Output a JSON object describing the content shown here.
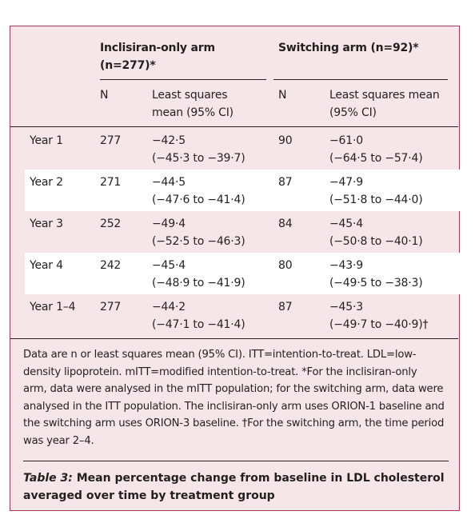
{
  "table": {
    "groups": [
      {
        "line1": "Inclisiran-only arm",
        "line2": "(n=277)*"
      },
      {
        "line1": "Switching arm (n=92)*",
        "line2": ""
      }
    ],
    "subheaders": {
      "n1": "N",
      "lsm1_line1": "Least squares",
      "lsm1_line2": "mean (95% CI)",
      "n2": "N",
      "lsm2_line1": "Least squares mean",
      "lsm2_line2": "(95% CI)"
    },
    "rows": [
      {
        "label": "Year 1",
        "n1": "277",
        "m1": "−42·5",
        "ci1": "(−45·3 to −39·7)",
        "n2": "90",
        "m2": "−61·0",
        "ci2": "(−64·5 to −57·4)"
      },
      {
        "label": "Year 2",
        "n1": "271",
        "m1": "−44·5",
        "ci1": "(−47·6 to −41·4)",
        "n2": "87",
        "m2": "−47·9",
        "ci2": "(−51·8 to −44·0)"
      },
      {
        "label": "Year 3",
        "n1": "252",
        "m1": "−49·4",
        "ci1": "(−52·5 to −46·3)",
        "n2": "84",
        "m2": "−45·4",
        "ci2": "(−50·8 to −40·1)"
      },
      {
        "label": "Year 4",
        "n1": "242",
        "m1": "−45·4",
        "ci1": "(−48·9 to −41·9)",
        "n2": "80",
        "m2": "−43·9",
        "ci2": "(−49·5 to −38·3)"
      },
      {
        "label": "Year 1–4",
        "n1": "277",
        "m1": "−44·2",
        "ci1": "(−47·1 to −41·4)",
        "n2": "87",
        "m2": "−45·3",
        "ci2": "(−49·7 to −40·9)†"
      }
    ]
  },
  "footnote": [
    "Data are n or least squares mean (95% CI). ITT=intention-to-treat. LDL=low-",
    "density lipoprotein. mITT=modified intention-to-treat. *For the inclisiran-only",
    "arm, data were analysed in the mITT population; for the switching arm, data were",
    "analysed in the ITT population. The inclisiran-only arm uses ORION-1 baseline and",
    "the switching arm uses ORION-3 baseline. †For the switching arm, the time period",
    "was year 2–4."
  ],
  "caption": {
    "label": "Table 3:",
    "line1": " Mean percentage change from baseline in LDL cholesterol",
    "line2": "averaged over time by treatment group"
  }
}
